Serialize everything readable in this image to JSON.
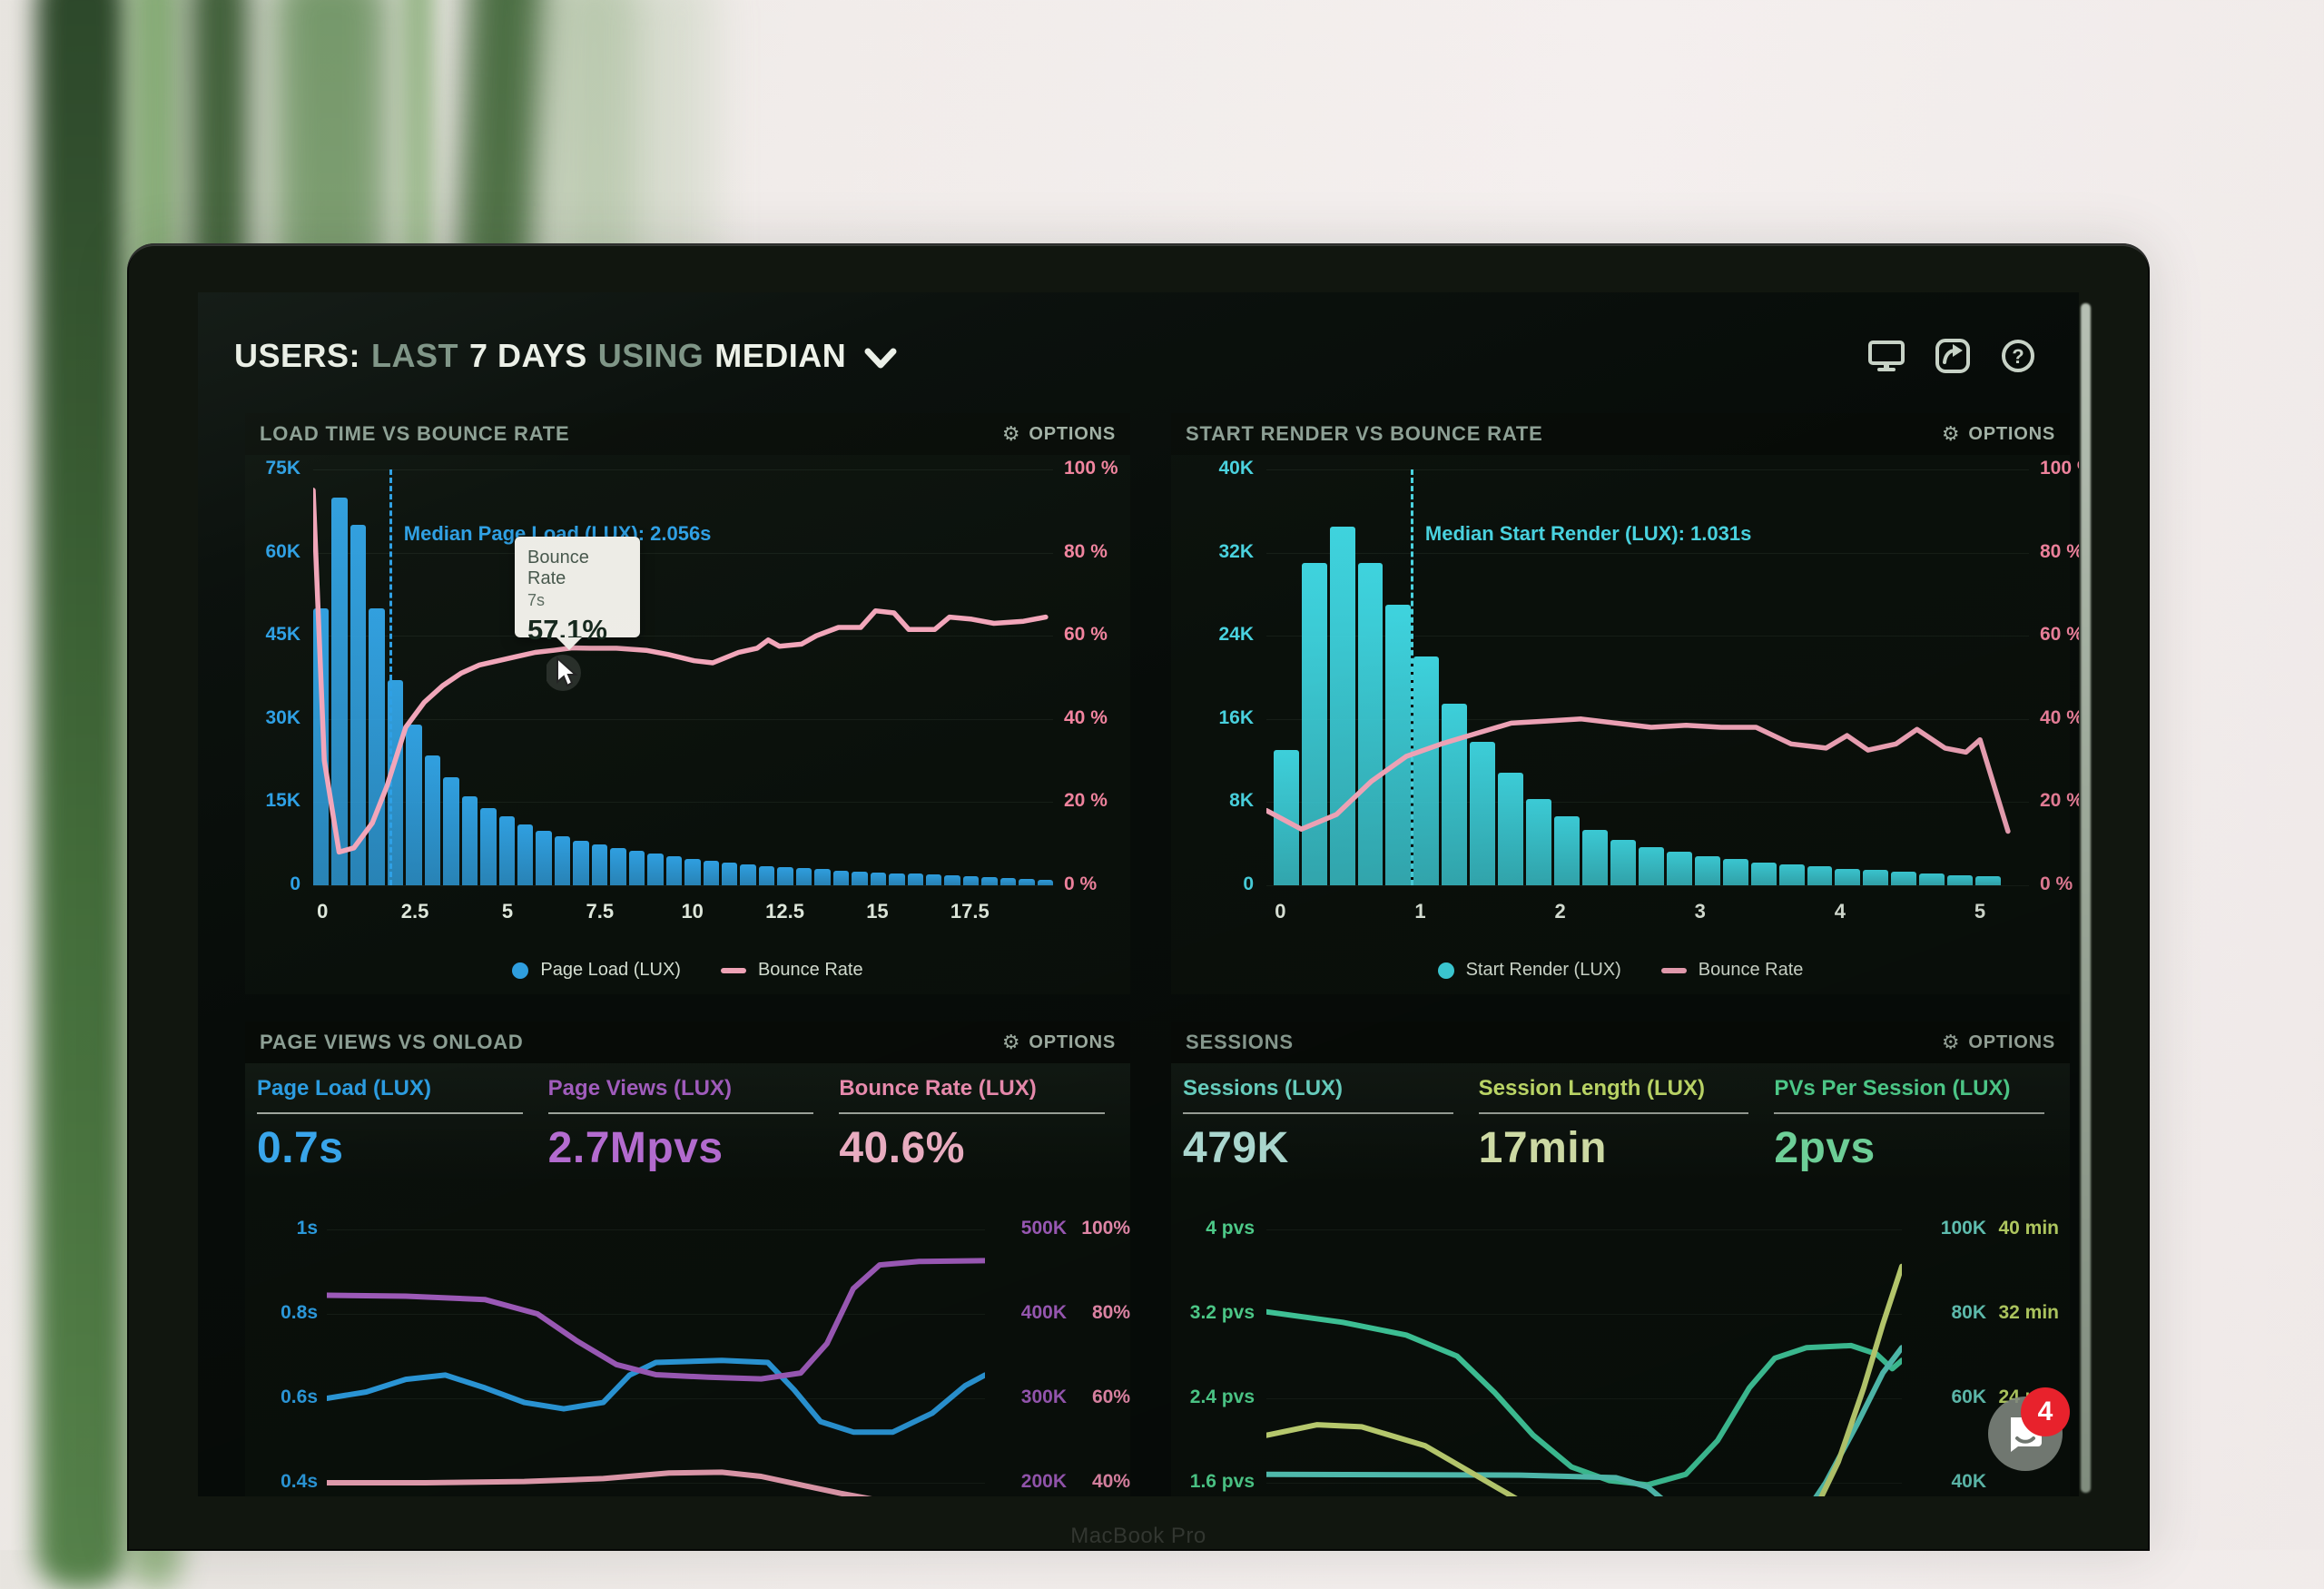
{
  "window": {
    "bezel_label": "MacBook Pro"
  },
  "icons": {
    "gear": "⚙"
  },
  "options_label": "OPTIONS",
  "header": {
    "title_segments": [
      {
        "t": "USERS:",
        "muted": false
      },
      {
        "t": "LAST",
        "muted": true
      },
      {
        "t": "7 DAYS",
        "muted": false
      },
      {
        "t": "USING",
        "muted": true
      },
      {
        "t": "MEDIAN",
        "muted": false
      }
    ],
    "toolbar_icons": [
      "display-icon",
      "share-icon",
      "help-icon"
    ]
  },
  "chat": {
    "unread_count": "4"
  },
  "chart_data": [
    {
      "id": "load-time-vs-bounce-rate",
      "type": "bar",
      "title": "LOAD TIME VS BOUNCE RATE",
      "x_ticks": [
        "0",
        "2.5",
        "5",
        "7.5",
        "10",
        "12.5",
        "15",
        "17.5"
      ],
      "x_tick_values": [
        0,
        2.5,
        5,
        7.5,
        10,
        12.5,
        15,
        17.5
      ],
      "x_max": 20,
      "y_left_ticks": [
        "75K",
        "60K",
        "45K",
        "30K",
        "15K",
        "0"
      ],
      "y_left_max": 75,
      "y_left_color": "#2da0e6",
      "y_right_ticks": [
        "100 %",
        "80 %",
        "60 %",
        "40 %",
        "20 %",
        "0 %"
      ],
      "y_right_max": 100,
      "y_right_color": "#f2849f",
      "bars": {
        "name": "Page Load (LUX)",
        "color": "#2f9fe0",
        "bin_width_s": 0.5,
        "start_s": 0,
        "values_k": [
          50,
          70,
          65,
          50,
          37,
          29,
          23.5,
          19.5,
          16,
          14,
          12.5,
          11,
          9.8,
          8.8,
          8,
          7.3,
          6.7,
          6.2,
          5.7,
          5.2,
          4.8,
          4.4,
          4.1,
          3.8,
          3.5,
          3.3,
          3.1,
          2.9,
          2.7,
          2.5,
          2.35,
          2.2,
          2.05,
          1.9,
          1.8,
          1.65,
          1.5,
          1.35,
          1.15,
          0.95
        ]
      },
      "line": {
        "name": "Bounce Rate",
        "color": "#f3a6ba",
        "points_s_pct": [
          [
            0,
            95
          ],
          [
            0.3,
            30
          ],
          [
            0.7,
            8
          ],
          [
            1.1,
            9
          ],
          [
            1.6,
            15
          ],
          [
            2,
            24
          ],
          [
            2.5,
            38
          ],
          [
            3,
            44
          ],
          [
            3.5,
            48
          ],
          [
            4,
            51
          ],
          [
            4.5,
            53
          ],
          [
            5,
            54
          ],
          [
            5.5,
            55
          ],
          [
            6,
            56
          ],
          [
            6.5,
            56.5
          ],
          [
            7,
            57.1
          ],
          [
            7.5,
            57
          ],
          [
            8.2,
            57
          ],
          [
            9,
            56.5
          ],
          [
            9.6,
            55.5
          ],
          [
            10.3,
            54
          ],
          [
            10.8,
            53.5
          ],
          [
            11.5,
            56
          ],
          [
            12,
            57
          ],
          [
            12.3,
            59
          ],
          [
            12.6,
            57.5
          ],
          [
            13.2,
            58
          ],
          [
            13.6,
            60
          ],
          [
            14.2,
            62
          ],
          [
            14.8,
            62
          ],
          [
            15.2,
            66
          ],
          [
            15.7,
            65.5
          ],
          [
            16.1,
            61.5
          ],
          [
            16.8,
            61.5
          ],
          [
            17.2,
            64.5
          ],
          [
            17.8,
            64
          ],
          [
            18.4,
            63
          ],
          [
            19.2,
            63.5
          ],
          [
            19.8,
            64.5
          ]
        ]
      },
      "median": {
        "label": "Median Page Load (LUX): 2.056s",
        "value_s": 2.056,
        "color": "#2da0e6"
      },
      "legend": [
        {
          "label": "Page Load (LUX)",
          "swatch": "dot",
          "color": "#2f9fe0"
        },
        {
          "label": "Bounce Rate",
          "swatch": "line",
          "color": "#f3a6ba"
        }
      ],
      "tooltip": {
        "series": "Bounce Rate",
        "x_value": "7s",
        "value": "57.1%"
      }
    },
    {
      "id": "start-render-vs-bounce-rate",
      "type": "bar",
      "title": "START RENDER VS BOUNCE RATE",
      "x_ticks": [
        "0",
        "1",
        "2",
        "3",
        "4",
        "5"
      ],
      "x_tick_values": [
        0,
        1,
        2,
        3,
        4,
        5
      ],
      "x_max": 5.45,
      "y_left_ticks": [
        "40K",
        "32K",
        "24K",
        "16K",
        "8K",
        "0"
      ],
      "y_left_max": 40,
      "y_left_color": "#49d2df",
      "y_right_ticks": [
        "100 %",
        "80 %",
        "60 %",
        "40 %",
        "20 %",
        "0 %"
      ],
      "y_right_max": 100,
      "y_right_color": "#f2849f",
      "bars": {
        "name": "Start Render (LUX)",
        "color": "#3ed3de",
        "bin_width_s": 0.2,
        "start_s": 0.05,
        "values_k": [
          13,
          31,
          34.5,
          31,
          27,
          22,
          17.5,
          13.8,
          10.8,
          8.3,
          6.6,
          5.3,
          4.4,
          3.7,
          3.2,
          2.8,
          2.5,
          2.2,
          2.0,
          1.8,
          1.6,
          1.45,
          1.3,
          1.15,
          1.0,
          0.85
        ]
      },
      "line": {
        "name": "Bounce Rate",
        "color": "#f3a6ba",
        "points_s_pct": [
          [
            0,
            18
          ],
          [
            0.25,
            13.5
          ],
          [
            0.5,
            17
          ],
          [
            0.75,
            25
          ],
          [
            1,
            31
          ],
          [
            1.25,
            34
          ],
          [
            1.5,
            36.5
          ],
          [
            1.75,
            39
          ],
          [
            2,
            39.5
          ],
          [
            2.25,
            40
          ],
          [
            2.5,
            39
          ],
          [
            2.75,
            38
          ],
          [
            3,
            38.5
          ],
          [
            3.25,
            38
          ],
          [
            3.5,
            38
          ],
          [
            3.75,
            34
          ],
          [
            4,
            33
          ],
          [
            4.15,
            36
          ],
          [
            4.3,
            32.5
          ],
          [
            4.5,
            34
          ],
          [
            4.65,
            37.5
          ],
          [
            4.85,
            33
          ],
          [
            5,
            32
          ],
          [
            5.1,
            35
          ],
          [
            5.3,
            13
          ]
        ]
      },
      "median": {
        "label": "Median Start Render (LUX): 1.031s",
        "value_s": 1.031,
        "color": "#49d2df"
      },
      "legend": [
        {
          "label": "Start Render (LUX)",
          "swatch": "dot",
          "color": "#3ed3de"
        },
        {
          "label": "Bounce Rate",
          "swatch": "line",
          "color": "#f3a6ba"
        }
      ]
    },
    {
      "id": "page-views-vs-onload",
      "type": "line",
      "title": "PAGE VIEWS VS ONLOAD",
      "metrics": [
        {
          "label": "Page Load (LUX)",
          "value": "0.7s",
          "label_color": "#2d9fe4",
          "value_color": "#3aa9f0"
        },
        {
          "label": "Page Views (LUX)",
          "value": "2.7Mpvs",
          "label_color": "#a55fc2",
          "value_color": "#bb70d8"
        },
        {
          "label": "Bounce Rate (LUX)",
          "value": "40.6%",
          "label_color": "#f391b5",
          "value_color": "#f7b7cc"
        }
      ],
      "axes": {
        "left": {
          "ticks": [
            "1s",
            "0.8s",
            "0.6s",
            "0.4s"
          ],
          "top": 1,
          "step": 0.2,
          "color": "#2d9fe4"
        },
        "right1": {
          "ticks": [
            "500K",
            "400K",
            "300K",
            "200K"
          ],
          "top": 500,
          "step": 100,
          "color": "#a55fc2"
        },
        "right2": {
          "ticks": [
            "100%",
            "80%",
            "60%",
            "40%"
          ],
          "top": 100,
          "step": 20,
          "color": "#f391b5"
        }
      },
      "series": [
        {
          "name": "Page Load (LUX)",
          "axis": "left",
          "color": "#2d9fe4",
          "points": [
            [
              0,
              0.6
            ],
            [
              0.06,
              0.615
            ],
            [
              0.12,
              0.645
            ],
            [
              0.18,
              0.655
            ],
            [
              0.24,
              0.625
            ],
            [
              0.3,
              0.59
            ],
            [
              0.36,
              0.575
            ],
            [
              0.42,
              0.59
            ],
            [
              0.46,
              0.655
            ],
            [
              0.5,
              0.685
            ],
            [
              0.6,
              0.69
            ],
            [
              0.67,
              0.685
            ],
            [
              0.71,
              0.62
            ],
            [
              0.75,
              0.545
            ],
            [
              0.8,
              0.52
            ],
            [
              0.86,
              0.52
            ],
            [
              0.92,
              0.565
            ],
            [
              0.97,
              0.63
            ],
            [
              1,
              0.655
            ]
          ]
        },
        {
          "name": "Page Views (LUX)",
          "axis": "right1",
          "color": "#a55fc2",
          "points": [
            [
              0,
              422
            ],
            [
              0.12,
              421
            ],
            [
              0.24,
              417
            ],
            [
              0.32,
              400
            ],
            [
              0.38,
              368
            ],
            [
              0.44,
              340
            ],
            [
              0.5,
              328
            ],
            [
              0.58,
              325
            ],
            [
              0.66,
              323
            ],
            [
              0.72,
              330
            ],
            [
              0.76,
              365
            ],
            [
              0.8,
              430
            ],
            [
              0.84,
              458
            ],
            [
              0.9,
              462
            ],
            [
              1,
              463
            ]
          ]
        },
        {
          "name": "Bounce Rate (LUX)",
          "axis": "right2",
          "color": "#f3a6ba",
          "points": [
            [
              0,
              40
            ],
            [
              0.15,
              40
            ],
            [
              0.3,
              40.3
            ],
            [
              0.42,
              41
            ],
            [
              0.52,
              42.3
            ],
            [
              0.6,
              42.5
            ],
            [
              0.66,
              41.5
            ],
            [
              0.72,
              39.5
            ],
            [
              0.78,
              37.5
            ],
            [
              0.85,
              35.5
            ],
            [
              0.92,
              33.5
            ],
            [
              1,
              31.8
            ]
          ]
        }
      ]
    },
    {
      "id": "sessions",
      "type": "line",
      "title": "SESSIONS",
      "metrics": [
        {
          "label": "Sessions (LUX)",
          "value": "479K",
          "label_color": "#6edccb",
          "value_color": "#b9e9e0"
        },
        {
          "label": "Session Length (LUX)",
          "value": "17min",
          "label_color": "#cce96f",
          "value_color": "#e4f2b6"
        },
        {
          "label": "PVs Per Session (LUX)",
          "value": "2pvs",
          "label_color": "#55df97",
          "value_color": "#7cea AB"
        }
      ],
      "axes": {
        "left": {
          "ticks": [
            "4 pvs",
            "3.2 pvs",
            "2.4 pvs",
            "1.6 pvs"
          ],
          "top": 4,
          "step": 0.8,
          "color": "#55df97"
        },
        "right1": {
          "ticks": [
            "100K",
            "80K",
            "60K",
            "40K"
          ],
          "top": 100,
          "step": 20,
          "color": "#6edccb"
        },
        "right2": {
          "ticks": [
            "40 min",
            "32 min",
            "24 min",
            ""
          ],
          "top": 40,
          "step": 8,
          "color": "#cce96f"
        }
      },
      "series": [
        {
          "name": "PVs Per Session (LUX)",
          "axis": "left",
          "color": "#45d9a8",
          "points": [
            [
              0,
              3.22
            ],
            [
              0.12,
              3.12
            ],
            [
              0.22,
              3.0
            ],
            [
              0.3,
              2.8
            ],
            [
              0.36,
              2.45
            ],
            [
              0.42,
              2.05
            ],
            [
              0.48,
              1.75
            ],
            [
              0.54,
              1.62
            ],
            [
              0.6,
              1.58
            ],
            [
              0.66,
              1.68
            ],
            [
              0.71,
              2.0
            ],
            [
              0.76,
              2.5
            ],
            [
              0.8,
              2.78
            ],
            [
              0.85,
              2.88
            ],
            [
              0.92,
              2.9
            ],
            [
              0.96,
              2.82
            ],
            [
              0.985,
              2.68
            ],
            [
              1,
              2.76
            ]
          ]
        },
        {
          "name": "Sessions (LUX)",
          "axis": "right1",
          "color": "#5cd8c8",
          "points": [
            [
              0,
              42
            ],
            [
              0.4,
              41.8
            ],
            [
              0.55,
              41.2
            ],
            [
              0.6,
              39
            ],
            [
              0.64,
              34
            ],
            [
              0.68,
              30
            ],
            [
              0.72,
              27
            ],
            [
              0.76,
              25.5
            ],
            [
              0.8,
              26
            ],
            [
              0.84,
              31
            ],
            [
              0.88,
              40
            ],
            [
              0.93,
              54
            ],
            [
              0.97,
              66
            ],
            [
              1,
              72
            ]
          ]
        },
        {
          "name": "Session Length (LUX)",
          "axis": "right2",
          "color": "#d3e87e",
          "points": [
            [
              0,
              20.5
            ],
            [
              0.08,
              21.5
            ],
            [
              0.15,
              21.3
            ],
            [
              0.25,
              19.5
            ],
            [
              0.35,
              16
            ],
            [
              0.45,
              12.5
            ],
            [
              0.52,
              10.8
            ],
            [
              0.58,
              9.5
            ],
            [
              0.82,
              9.5
            ],
            [
              0.86,
              13
            ],
            [
              0.9,
              18
            ],
            [
              0.94,
              25
            ],
            [
              0.97,
              31
            ],
            [
              1,
              36.5
            ]
          ]
        }
      ]
    }
  ]
}
